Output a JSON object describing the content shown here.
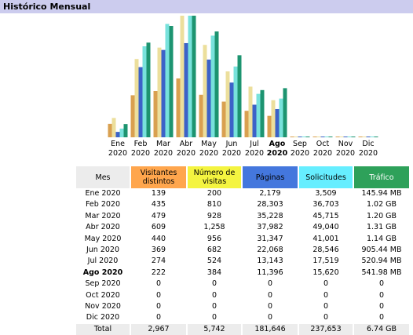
{
  "title": "Histórico Mensual",
  "columns": [
    {
      "label": "Mes",
      "color": "#ececec"
    },
    {
      "label": "Visitantes distintos",
      "color": "#ffa64d",
      "bar_color": "#d9a050"
    },
    {
      "label": "Número de visitas",
      "color": "#f4f440",
      "bar_color": "#ecdf9c"
    },
    {
      "label": "Páginas",
      "color": "#4477dd",
      "bar_color": "#3c62c8"
    },
    {
      "label": "Solicitudes",
      "color": "#66eeff",
      "bar_color": "#78e2dc"
    },
    {
      "label": "Tráfico",
      "color": "#2ea15a",
      "bar_color": "#1d9470"
    }
  ],
  "rows": [
    {
      "month": "Ene",
      "year": "2020",
      "values": [
        139,
        200,
        {
          "value": 2179,
          "label": "2,179"
        },
        {
          "value": 3509,
          "label": "3,509"
        },
        {
          "value": 145.94,
          "label": "145.94 MB"
        }
      ]
    },
    {
      "month": "Feb",
      "year": "2020",
      "values": [
        435,
        810,
        {
          "value": 28303,
          "label": "28,303"
        },
        {
          "value": 36703,
          "label": "36,703"
        },
        {
          "value": 1044.48,
          "label": "1.02 GB"
        }
      ]
    },
    {
      "month": "Mar",
      "year": "2020",
      "values": [
        479,
        928,
        {
          "value": 35228,
          "label": "35,228"
        },
        {
          "value": 45715,
          "label": "45,715"
        },
        {
          "value": 1228.8,
          "label": "1.20 GB"
        }
      ]
    },
    {
      "month": "Abr",
      "year": "2020",
      "values": [
        609,
        {
          "value": 1258,
          "label": "1,258"
        },
        {
          "value": 37982,
          "label": "37,982"
        },
        {
          "value": 49040,
          "label": "49,040"
        },
        {
          "value": 1341.44,
          "label": "1.31 GB"
        }
      ]
    },
    {
      "month": "May",
      "year": "2020",
      "values": [
        440,
        956,
        {
          "value": 31347,
          "label": "31,347"
        },
        {
          "value": 41001,
          "label": "41,001"
        },
        {
          "value": 1167.36,
          "label": "1.14 GB"
        }
      ]
    },
    {
      "month": "Jun",
      "year": "2020",
      "values": [
        369,
        682,
        {
          "value": 22068,
          "label": "22,068"
        },
        {
          "value": 28546,
          "label": "28,546"
        },
        {
          "value": 905.44,
          "label": "905.44 MB"
        }
      ]
    },
    {
      "month": "Jul",
      "year": "2020",
      "values": [
        274,
        524,
        {
          "value": 13143,
          "label": "13,143"
        },
        {
          "value": 17519,
          "label": "17,519"
        },
        {
          "value": 520.94,
          "label": "520.94 MB"
        }
      ]
    },
    {
      "month": "Ago",
      "year": "2020",
      "highlight": true,
      "values": [
        222,
        384,
        {
          "value": 11396,
          "label": "11,396"
        },
        {
          "value": 15620,
          "label": "15,620"
        },
        {
          "value": 541.98,
          "label": "541.98 MB"
        }
      ]
    },
    {
      "month": "Sep",
      "year": "2020",
      "values": [
        0,
        0,
        0,
        0,
        0
      ]
    },
    {
      "month": "Oct",
      "year": "2020",
      "values": [
        0,
        0,
        0,
        0,
        0
      ]
    },
    {
      "month": "Nov",
      "year": "2020",
      "values": [
        0,
        0,
        0,
        0,
        0
      ]
    },
    {
      "month": "Dic",
      "year": "2020",
      "values": [
        0,
        0,
        0,
        0,
        0
      ]
    }
  ],
  "total": {
    "label": "Total",
    "values": [
      {
        "value": 2967,
        "label": "2,967"
      },
      {
        "value": 5742,
        "label": "5,742"
      },
      {
        "value": 181646,
        "label": "181,646"
      },
      {
        "value": 237653,
        "label": "237,653"
      },
      {
        "value": 6901.76,
        "label": "6.74 GB"
      }
    ]
  }
}
